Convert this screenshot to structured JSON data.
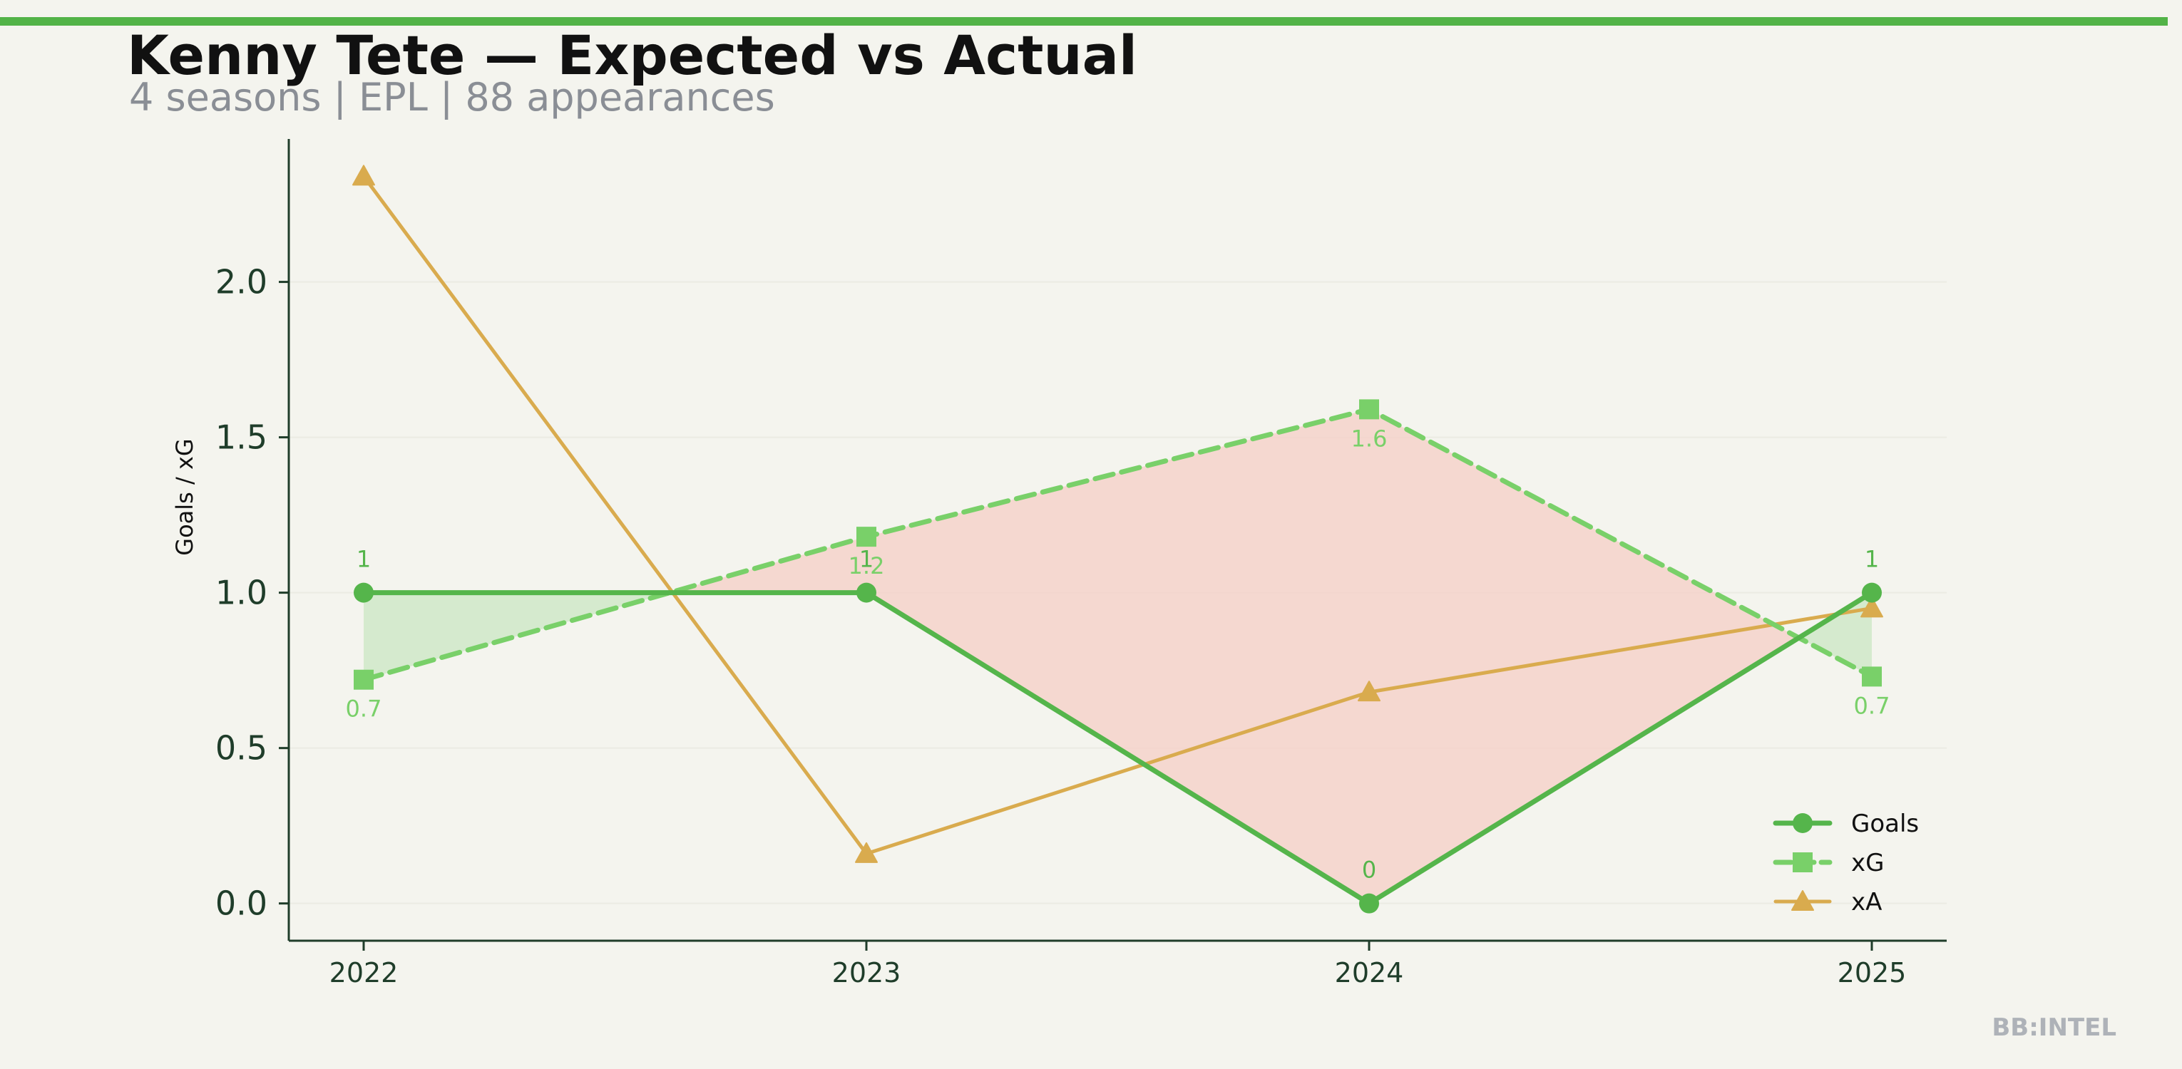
{
  "header": {
    "title": "Kenny Tete — Expected vs Actual",
    "subtitle": "4 seasons | EPL | 88 appearances"
  },
  "watermark": "BB:INTEL",
  "colors": {
    "background": "#f4f4ee",
    "accent_bar": "#52b347",
    "axis": "#1f3d2a",
    "goals": "#55b54b",
    "xg": "#79d069",
    "xa": "#d9ab4e",
    "fill_overperform": "#cfe8c8",
    "fill_underperform": "#f5d2ca",
    "grid": "#ebebe3"
  },
  "chart_data": {
    "type": "line",
    "x": [
      "2022",
      "2023",
      "2024",
      "2025"
    ],
    "series": [
      {
        "name": "Goals",
        "values": [
          1,
          1,
          0,
          1
        ],
        "labels": [
          "1",
          "1",
          "0",
          "1"
        ],
        "marker": "circle",
        "style": "solid",
        "color": "#55b54b"
      },
      {
        "name": "xG",
        "values": [
          0.72,
          1.18,
          1.59,
          0.73
        ],
        "labels": [
          "0.7",
          "1.2",
          "1.6",
          "0.7"
        ],
        "marker": "square",
        "style": "dashed",
        "color": "#79d069"
      },
      {
        "name": "xA",
        "values": [
          2.34,
          0.16,
          0.68,
          0.95
        ],
        "marker": "triangle",
        "style": "solid",
        "color": "#d9ab4e"
      }
    ],
    "title": "Kenny Tete — Expected vs Actual",
    "subtitle": "4 seasons | EPL | 88 appearances",
    "xlabel": "",
    "ylabel": "Goals / xG",
    "ylim": [
      -0.12,
      2.46
    ],
    "yticks": [
      0,
      0.5,
      1,
      1.5,
      2
    ],
    "ytick_labels": [
      "0.0",
      "0.5",
      "1.0",
      "1.5",
      "2.0"
    ],
    "grid": true,
    "legend": "bottom-right",
    "shading": "between Goals and xG — green where Goals exceed xG, red where xG exceeds Goals"
  }
}
